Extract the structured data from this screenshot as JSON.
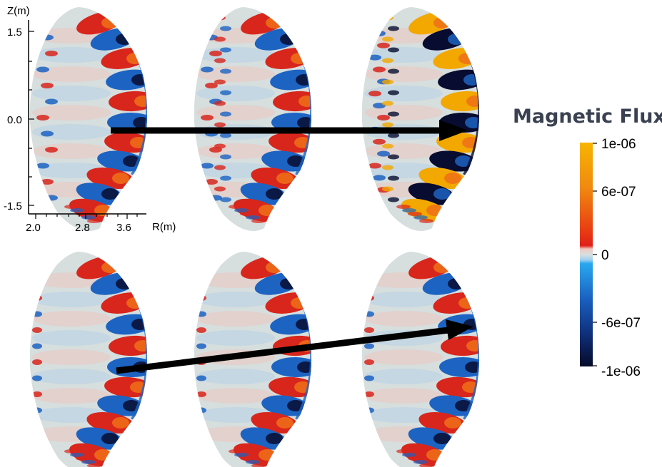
{
  "figure": {
    "panels": [
      {
        "row": 1,
        "col": 1,
        "variant": "top"
      },
      {
        "row": 1,
        "col": 2,
        "variant": "top"
      },
      {
        "row": 1,
        "col": 3,
        "variant": "top-saturated"
      },
      {
        "row": 2,
        "col": 1,
        "variant": "bottom"
      },
      {
        "row": 2,
        "col": 2,
        "variant": "bottom"
      },
      {
        "row": 2,
        "col": 3,
        "variant": "bottom"
      }
    ],
    "axes": {
      "z_label": "Z(m)",
      "r_label": "R(m)",
      "z_ticks": [
        "1.5",
        "0.0",
        "-1.5"
      ],
      "r_ticks": [
        "2.0",
        "2.8",
        "3.6"
      ]
    },
    "colorbar": {
      "title": "Magnetic Flux",
      "labels": [
        "1e-06",
        "6e-07",
        "0",
        "-6e-07",
        "-1e-06"
      ],
      "colors": {
        "max": "#f7b500",
        "upper": "#ee5a10",
        "near_zero_pos": "#e02018",
        "zero": "#d8e0e0",
        "near_zero_neg": "#29a8f0",
        "lower": "#1a4fb0",
        "min": "#050a28"
      }
    },
    "colors": {
      "red": "#d8261c",
      "blue": "#1d63c2",
      "dark": "#080c30",
      "orange": "#f07018",
      "gold": "#f2a800",
      "pale_red": "#edc6c0",
      "pale_blue": "#b7d2e6",
      "gray": "#d6dede",
      "arrow": "#000000"
    }
  }
}
